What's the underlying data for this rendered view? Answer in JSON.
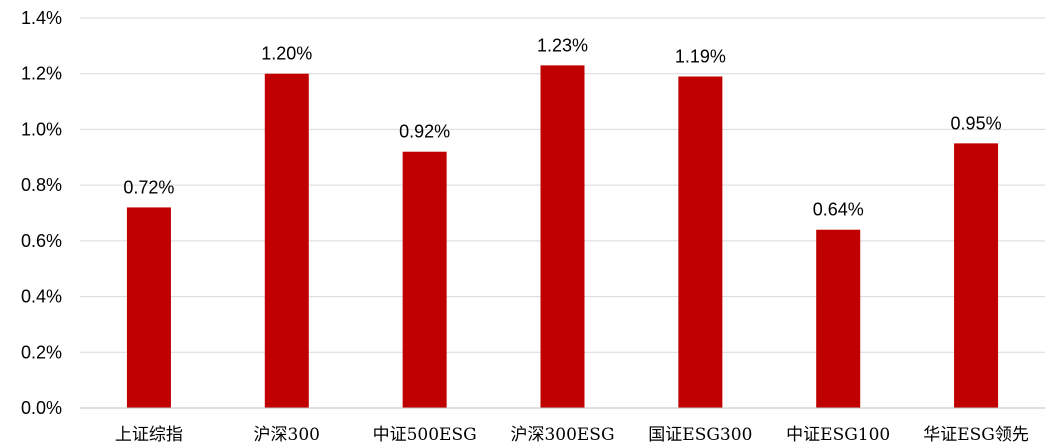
{
  "chart_data": {
    "type": "bar",
    "categories": [
      "上证综指",
      "沪深300",
      "中证500ESG",
      "沪深300ESG",
      "国证ESG300",
      "中证ESG100",
      "华证ESG领先"
    ],
    "values": [
      0.72,
      1.2,
      0.92,
      1.23,
      1.19,
      0.64,
      0.95
    ],
    "value_labels": [
      "0.72%",
      "1.20%",
      "0.92%",
      "1.23%",
      "1.19%",
      "0.64%",
      "0.95%"
    ],
    "ylim": [
      0,
      1.4
    ],
    "yticks": [
      0,
      0.2,
      0.4,
      0.6,
      0.8,
      1.0,
      1.2,
      1.4
    ],
    "ytick_labels": [
      "0.0%",
      "0.2%",
      "0.4%",
      "0.6%",
      "0.8%",
      "1.0%",
      "1.2%",
      "1.4%"
    ],
    "grid": true,
    "legend": "none",
    "colors": {
      "bar": "#C00000",
      "grid": "#D9D9D9",
      "axis": "#BFBFBF"
    }
  }
}
